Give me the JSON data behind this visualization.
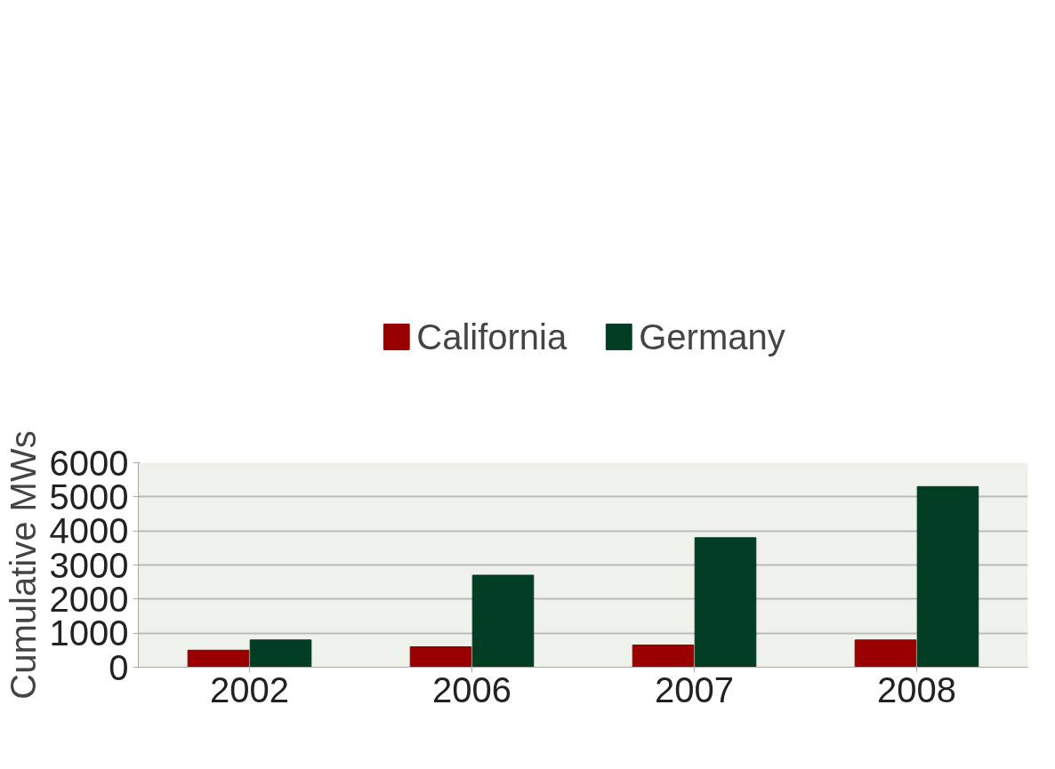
{
  "chart_data": {
    "type": "bar",
    "ylabel": "Cumulative MWs",
    "categories": [
      "2002",
      "2006",
      "2007",
      "2008"
    ],
    "series": [
      {
        "name": "California",
        "color": "#990000",
        "values": [
          500,
          600,
          650,
          800
        ]
      },
      {
        "name": "Germany",
        "color": "#003d22",
        "values": [
          800,
          2700,
          3800,
          5300
        ]
      }
    ],
    "ylim": [
      0,
      6000
    ],
    "yticks": [
      0,
      1000,
      2000,
      3000,
      4000,
      5000,
      6000
    ],
    "grid": "y",
    "legend": "top"
  }
}
